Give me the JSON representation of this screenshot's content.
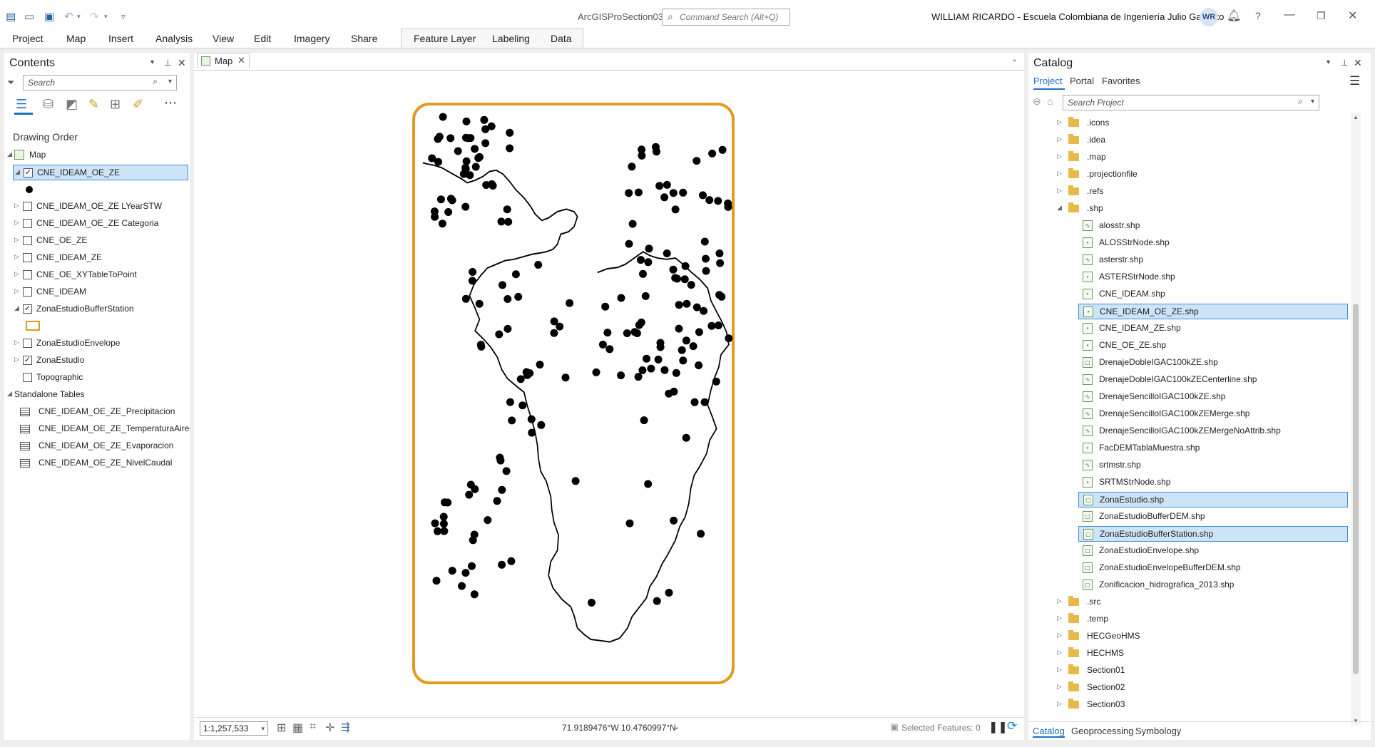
{
  "titlebar": {
    "app_title": "ArcGISProSection03",
    "command_search_placeholder": "Command Search (Alt+Q)",
    "user_name": "WILLIAM RICARDO  - Escuela Colombiana de Ingeniería Julio Garavito",
    "avatar_initials": "WR",
    "help": "?"
  },
  "ribbon": {
    "tabs": [
      "Project",
      "Map",
      "Insert",
      "Analysis",
      "View",
      "Edit",
      "Imagery",
      "Share"
    ],
    "contextual_tabs": [
      "Feature Layer",
      "Labeling",
      "Data"
    ]
  },
  "contents": {
    "title": "Contents",
    "search_placeholder": "Search",
    "section_label": "Drawing Order",
    "map_label": "Map",
    "layers": [
      {
        "label": "CNE_IDEAM_OE_ZE",
        "checked": "✓",
        "selected": true
      },
      {
        "label": "CNE_IDEAM_OE_ZE LYearSTW",
        "checked": ""
      },
      {
        "label": "CNE_IDEAM_OE_ZE Categoria",
        "checked": ""
      },
      {
        "label": "CNE_OE_ZE",
        "checked": ""
      },
      {
        "label": "CNE_IDEAM_ZE",
        "checked": ""
      },
      {
        "label": "CNE_OE_XYTableToPoint",
        "checked": ""
      },
      {
        "label": "CNE_IDEAM",
        "checked": ""
      },
      {
        "label": "ZonaEstudioBufferStation",
        "checked": "✓"
      },
      {
        "label": "ZonaEstudioEnvelope",
        "checked": ""
      },
      {
        "label": "ZonaEstudio",
        "checked": "✓"
      },
      {
        "label": "Topographic",
        "checked": ""
      }
    ],
    "standalone_label": "Standalone Tables",
    "tables": [
      "CNE_IDEAM_OE_ZE_Precipitacion",
      "CNE_IDEAM_OE_ZE_TemperaturaAire",
      "CNE_IDEAM_OE_ZE_Evaporacion",
      "CNE_IDEAM_OE_ZE_NivelCaudal"
    ]
  },
  "map": {
    "tab_label": "Map",
    "scale": "1:1,257,533",
    "coordinates": "71.9189476°W 10.4760997°N",
    "selected_features": "Selected Features: 0"
  },
  "catalog": {
    "title": "Catalog",
    "tabs": [
      "Project",
      "Portal",
      "Favorites"
    ],
    "search_placeholder": "Search Project",
    "items": [
      {
        "label": ".icons",
        "type": "folder",
        "level": 0
      },
      {
        "label": ".idea",
        "type": "folder",
        "level": 0
      },
      {
        "label": ".map",
        "type": "folder",
        "level": 0
      },
      {
        "label": ".projectionfile",
        "type": "folder",
        "level": 0
      },
      {
        "label": ".refs",
        "type": "folder",
        "level": 0
      },
      {
        "label": ".shp",
        "type": "folder-open",
        "level": 0
      },
      {
        "label": "alosstr.shp",
        "type": "line",
        "level": 1
      },
      {
        "label": "ALOSStrNode.shp",
        "type": "point",
        "level": 1
      },
      {
        "label": "asterstr.shp",
        "type": "line",
        "level": 1
      },
      {
        "label": "ASTERStrNode.shp",
        "type": "point",
        "level": 1
      },
      {
        "label": "CNE_IDEAM.shp",
        "type": "point",
        "level": 1
      },
      {
        "label": "CNE_IDEAM_OE_ZE.shp",
        "type": "point",
        "level": 1,
        "selected": true
      },
      {
        "label": "CNE_IDEAM_ZE.shp",
        "type": "point",
        "level": 1
      },
      {
        "label": "CNE_OE_ZE.shp",
        "type": "point",
        "level": 1
      },
      {
        "label": "DrenajeDobleIGAC100kZE.shp",
        "type": "poly",
        "level": 1
      },
      {
        "label": "DrenajeDobleIGAC100kZECenterline.shp",
        "type": "line",
        "level": 1
      },
      {
        "label": "DrenajeSencilloIGAC100kZE.shp",
        "type": "line",
        "level": 1
      },
      {
        "label": "DrenajeSencilloIGAC100kZEMerge.shp",
        "type": "line",
        "level": 1
      },
      {
        "label": "DrenajeSencilloIGAC100kZEMergeNoAttrib.shp",
        "type": "line",
        "level": 1
      },
      {
        "label": "FacDEMTablaMuestra.shp",
        "type": "point",
        "level": 1
      },
      {
        "label": "srtmstr.shp",
        "type": "line",
        "level": 1
      },
      {
        "label": "SRTMStrNode.shp",
        "type": "point",
        "level": 1
      },
      {
        "label": "ZonaEstudio.shp",
        "type": "poly",
        "level": 1,
        "selected": true
      },
      {
        "label": "ZonaEstudioBufferDEM.shp",
        "type": "poly",
        "level": 1
      },
      {
        "label": "ZonaEstudioBufferStation.shp",
        "type": "poly",
        "level": 1,
        "selected": true
      },
      {
        "label": "ZonaEstudioEnvelope.shp",
        "type": "poly",
        "level": 1
      },
      {
        "label": "ZonaEstudioEnvelopeBufferDEM.shp",
        "type": "poly",
        "level": 1
      },
      {
        "label": "Zonificacion_hidrografica_2013.shp",
        "type": "poly",
        "level": 1
      },
      {
        "label": ".src",
        "type": "folder",
        "level": 0
      },
      {
        "label": ".temp",
        "type": "folder",
        "level": 0
      },
      {
        "label": "HECGeoHMS",
        "type": "folder",
        "level": 0
      },
      {
        "label": "HECHMS",
        "type": "folder",
        "level": 0
      },
      {
        "label": "Section01",
        "type": "folder",
        "level": 0
      },
      {
        "label": "Section02",
        "type": "folder",
        "level": 0
      },
      {
        "label": "Section03",
        "type": "folder",
        "level": 0
      }
    ],
    "bottom_tabs": [
      "Catalog",
      "Geoprocessing",
      "Symbology"
    ]
  },
  "colors": {
    "accent": "#1a6fc2",
    "buffer": "#e39a1e",
    "selection": "#cde3f7"
  }
}
